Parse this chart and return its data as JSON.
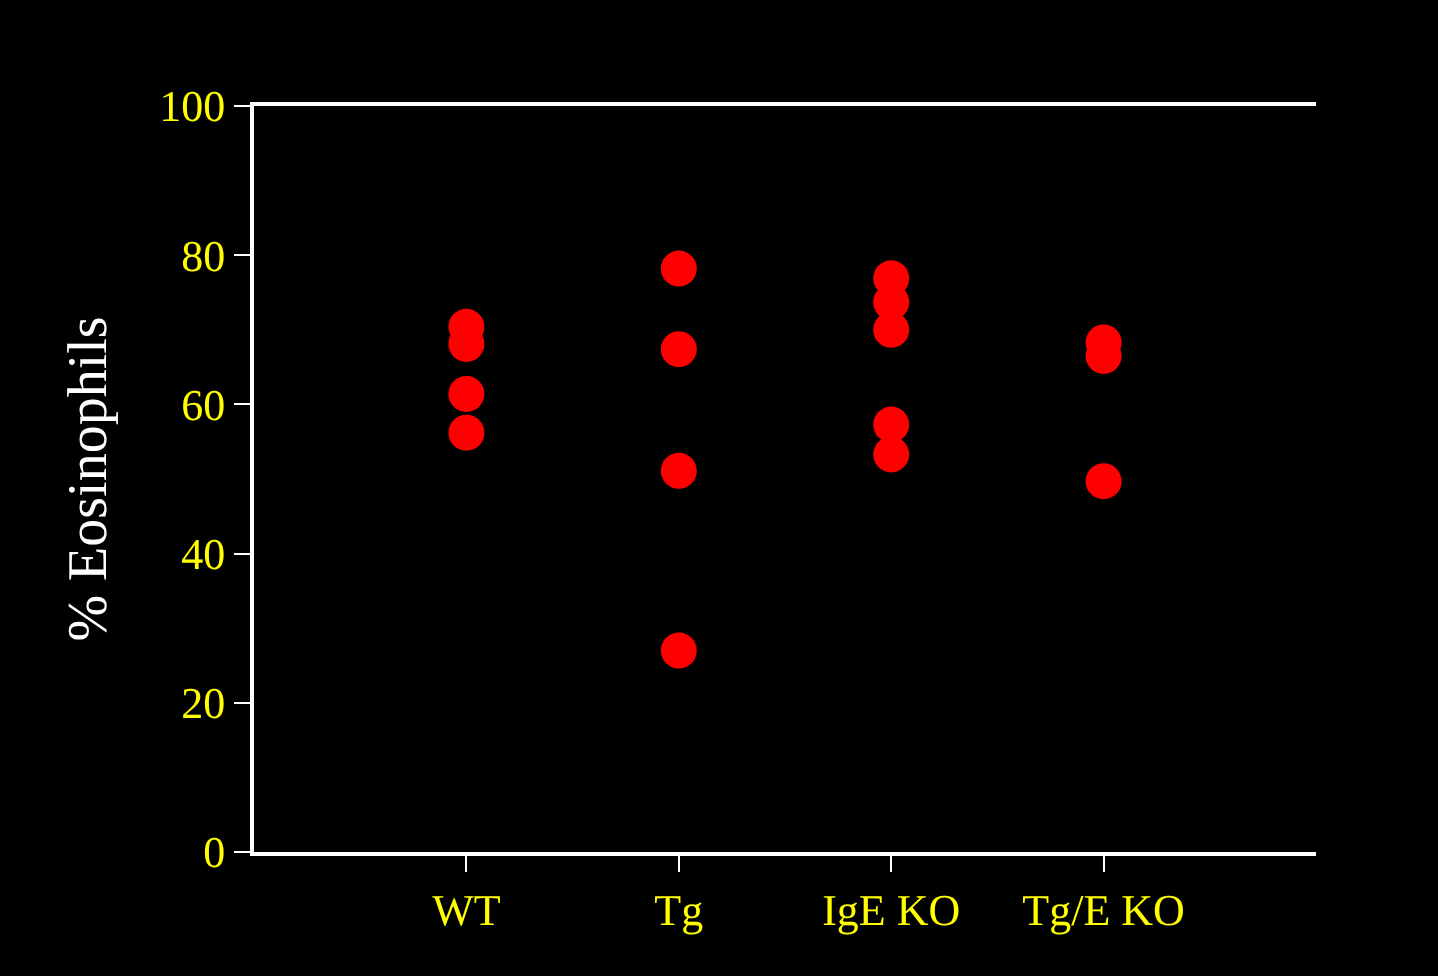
{
  "chart_data": {
    "type": "scatter",
    "ylabel": "% Eosinophils",
    "categories": [
      "WT",
      "Tg",
      "IgE KO",
      "Tg/E KO"
    ],
    "series": [
      {
        "color": "#ff0000",
        "x": [
          "WT",
          "WT",
          "WT",
          "WT",
          "Tg",
          "Tg",
          "Tg",
          "Tg",
          "IgE KO",
          "IgE KO",
          "IgE KO",
          "IgE KO",
          "IgE KO",
          "Tg/E KO",
          "Tg/E KO",
          "Tg/E KO"
        ],
        "values": [
          70.4,
          68.1,
          61.4,
          56.2,
          78.2,
          67.4,
          51.1,
          27.0,
          76.9,
          73.7,
          70.0,
          57.3,
          53.3,
          68.3,
          66.5,
          49.7
        ]
      }
    ],
    "ylim": [
      0,
      100
    ],
    "yticks": [
      0,
      20,
      40,
      60,
      80,
      100
    ],
    "grid": false,
    "marker": "circle"
  }
}
